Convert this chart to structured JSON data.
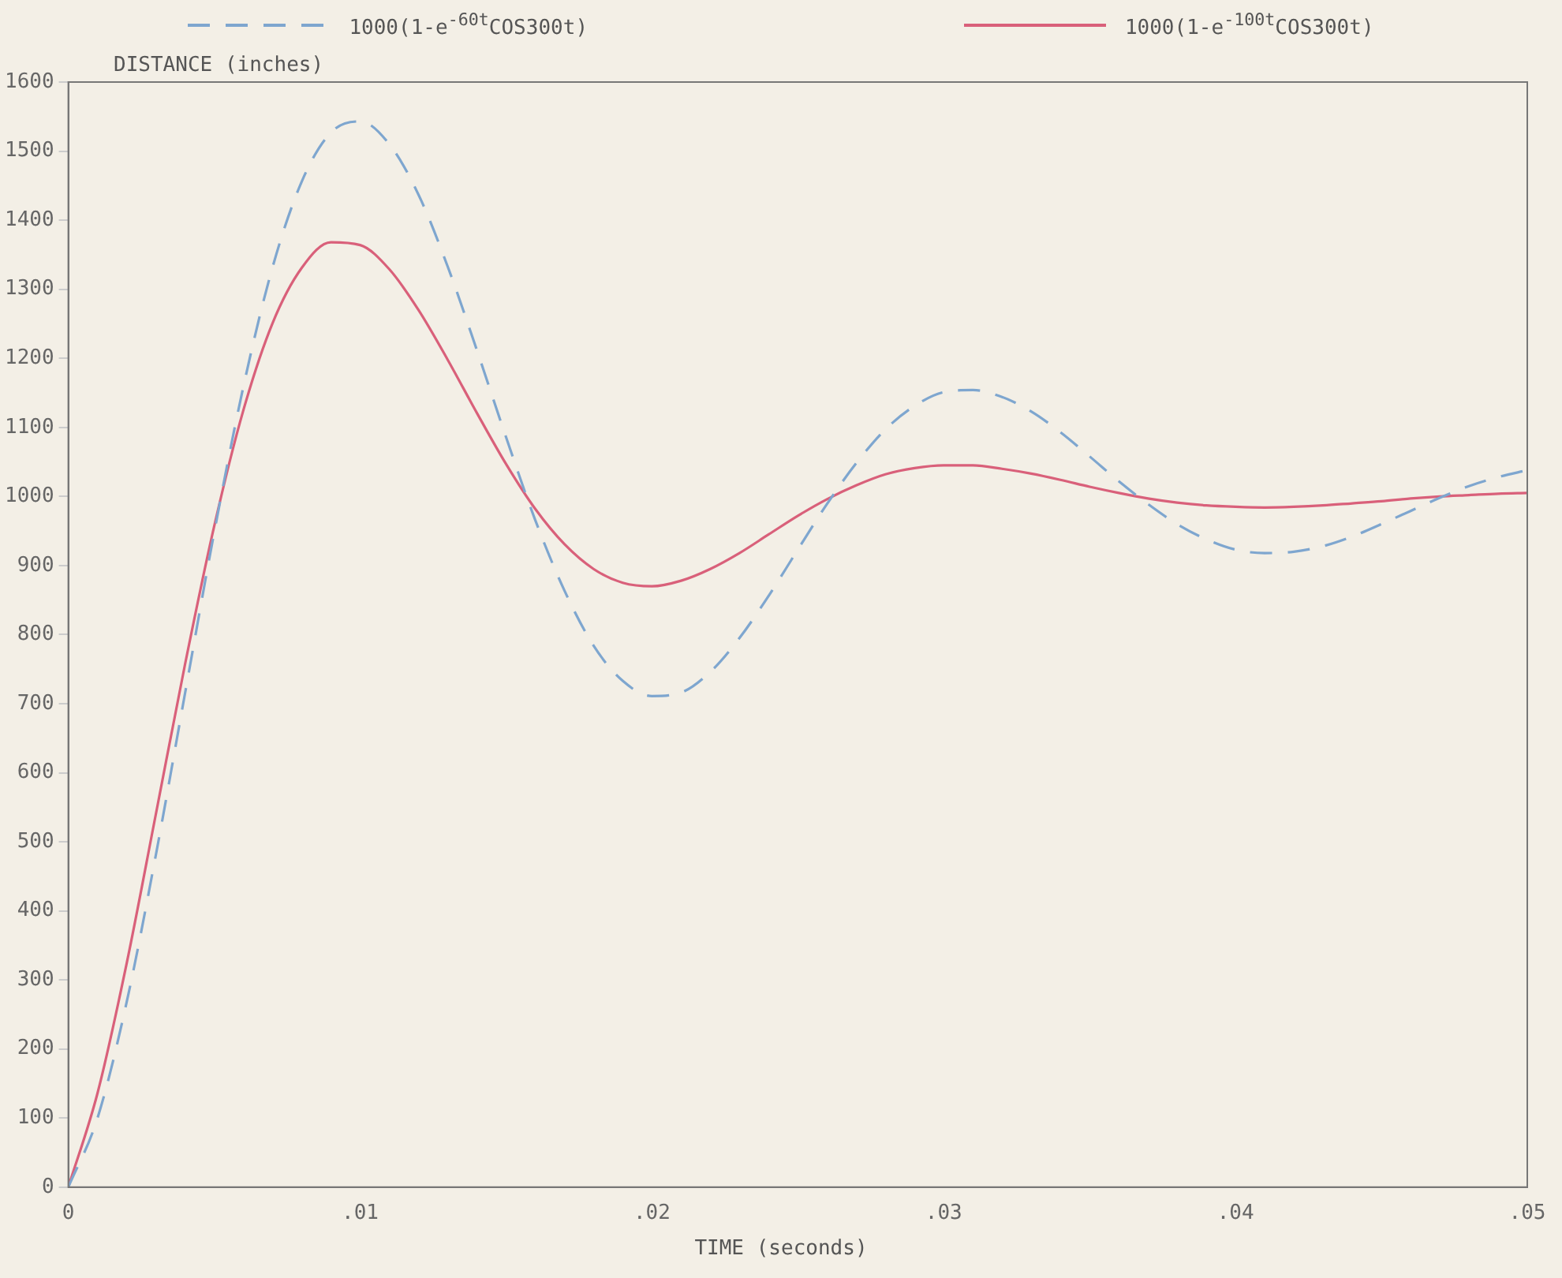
{
  "chart_data": {
    "type": "line",
    "xlabel": "TIME (seconds)",
    "ylabel": "DISTANCE (inches)",
    "x": [
      0,
      0.001,
      0.002,
      0.003,
      0.004,
      0.005,
      0.006,
      0.007,
      0.008,
      0.009,
      0.01,
      0.011,
      0.012,
      0.013,
      0.014,
      0.015,
      0.016,
      0.017,
      0.018,
      0.019,
      0.02,
      0.021,
      0.022,
      0.023,
      0.024,
      0.025,
      0.026,
      0.027,
      0.028,
      0.029,
      0.03,
      0.031,
      0.032,
      0.033,
      0.034,
      0.035,
      0.036,
      0.037,
      0.038,
      0.039,
      0.04,
      0.041,
      0.042,
      0.043,
      0.044,
      0.045,
      0.046,
      0.047,
      0.048,
      0.049,
      0.05
    ],
    "series": [
      {
        "name": "1000(1-e$^{-60t}$COS300t)",
        "color": "#7ea6cf",
        "line_style": "dashed",
        "values": [
          0,
          100,
          268,
          481,
          715,
          948,
          1159,
          1332,
          1456,
          1527,
          1543,
          1510,
          1437,
          1333,
          1212,
          1086,
          966,
          864,
          784,
          733,
          711,
          716,
          746,
          795,
          856,
          923,
          989,
          1048,
          1097,
          1131,
          1151,
          1154,
          1144,
          1123,
          1093,
          1058,
          1022,
          989,
          960,
          938,
          923,
          918,
          920,
          928,
          942,
          960,
          979,
          998,
          1015,
          1028,
          1038
        ]
      },
      {
        "name": "1000(1-e$^{-100t}$COS300t)",
        "color": "#d9607a",
        "line_style": "solid",
        "values": [
          0,
          136,
          324,
          540,
          757,
          957,
          1125,
          1251,
          1331,
          1368,
          1364,
          1329,
          1270,
          1198,
          1121,
          1047,
          982,
          931,
          895,
          875,
          870,
          878,
          895,
          918,
          945,
          972,
          996,
          1016,
          1032,
          1041,
          1045,
          1045,
          1040,
          1033,
          1024,
          1014,
          1005,
          997,
          991,
          987,
          985,
          984,
          985,
          987,
          990,
          993,
          997,
          1000,
          1002,
          1004,
          1005
        ]
      }
    ],
    "xlim": [
      0,
      0.05
    ],
    "xticks": [
      0,
      {
        "value": 0.01,
        "label": ".01"
      },
      {
        "value": 0.02,
        "label": ".02"
      },
      {
        "value": 0.03,
        "label": ".03"
      },
      {
        "value": 0.04,
        "label": ".04"
      },
      {
        "value": 0.05,
        "label": ".05"
      }
    ],
    "ylim": [
      0,
      1600
    ],
    "yticks": [
      0,
      100,
      200,
      300,
      400,
      500,
      600,
      700,
      800,
      900,
      1000,
      1100,
      1200,
      1300,
      1400,
      1500,
      1600
    ],
    "grid": false,
    "legend": "top",
    "marker": "none"
  }
}
